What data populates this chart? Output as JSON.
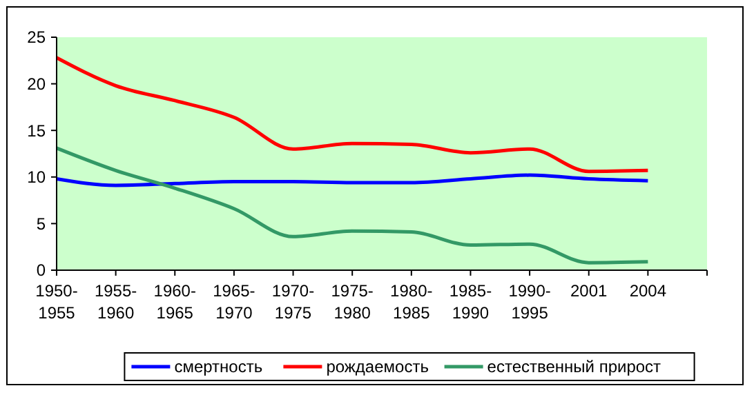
{
  "chart_data": {
    "type": "line",
    "categories": [
      "1950-1955",
      "1955-1960",
      "1960-1965",
      "1965-1970",
      "1970-1975",
      "1975-1980",
      "1980-1985",
      "1985-1990",
      "1990-1995",
      "2001",
      "2004",
      null
    ],
    "ylim": [
      0,
      25
    ],
    "yticks": [
      0,
      5,
      10,
      15,
      20,
      25
    ],
    "grid": false,
    "legend": "bottom",
    "marker": "none",
    "line_style": "solid",
    "series": [
      {
        "name": "смертность",
        "color": "#0000ff",
        "values": [
          9.8,
          9.1,
          9.3,
          9.5,
          9.5,
          9.4,
          9.4,
          9.8,
          10.2,
          9.8,
          9.6,
          null
        ]
      },
      {
        "name": "рождаемость",
        "color": "#ff0000",
        "values": [
          22.8,
          19.8,
          18.2,
          16.4,
          13.0,
          13.6,
          13.5,
          12.6,
          13.0,
          10.6,
          10.7,
          null
        ]
      },
      {
        "name": "естественный прирост",
        "color": "#339966",
        "values": [
          13.1,
          10.7,
          8.8,
          6.6,
          3.6,
          4.2,
          4.1,
          2.7,
          2.8,
          0.8,
          0.9,
          null
        ]
      }
    ]
  }
}
